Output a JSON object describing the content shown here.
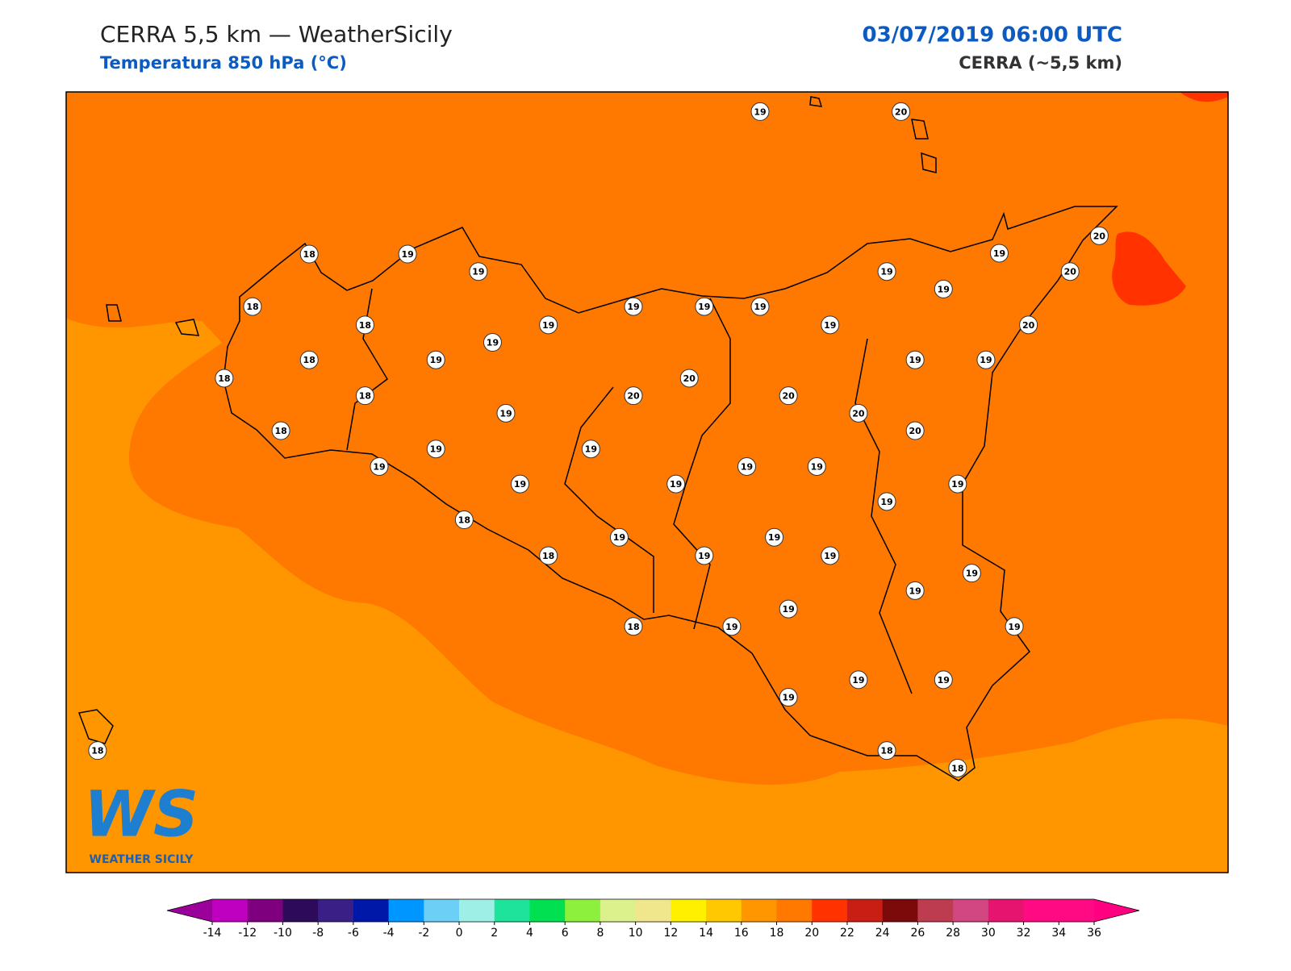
{
  "header": {
    "title": "CERRA 5,5 km — WeatherSicily",
    "subtitle": "Temperatura 850 hPa (°C)",
    "datetime": "03/07/2019 06:00 UTC",
    "model": "CERRA (~5,5 km)"
  },
  "logo": {
    "mark": "WS",
    "caption": "WEATHER SICILY"
  },
  "map": {
    "station_values": [
      19,
      20,
      18,
      19,
      19,
      20,
      19,
      19,
      20,
      19,
      18,
      18,
      19,
      19,
      19,
      19,
      19,
      20,
      19,
      18,
      19,
      19,
      19,
      18,
      20,
      18,
      20,
      20,
      19,
      20,
      18,
      20,
      19,
      19,
      19,
      19,
      19,
      19,
      19,
      19,
      19,
      18,
      19,
      19,
      18,
      19,
      19,
      19,
      19,
      19,
      18,
      19,
      19,
      19,
      19,
      19,
      18,
      18,
      18
    ]
  },
  "colorbar": {
    "ticks": [
      -14,
      -12,
      -10,
      -8,
      -6,
      -4,
      -2,
      0,
      2,
      4,
      6,
      8,
      10,
      12,
      14,
      16,
      18,
      20,
      22,
      24,
      26,
      28,
      30,
      32,
      34,
      36
    ],
    "colors": [
      "#c000c0",
      "#7f007f",
      "#2e0a5a",
      "#3a1f86",
      "#0018a8",
      "#0096ff",
      "#6ccff6",
      "#9ef0e6",
      "#1ee39a",
      "#00e050",
      "#8cf03c",
      "#dcf08c",
      "#f0e68c",
      "#fff000",
      "#ffc800",
      "#ff9600",
      "#ff7800",
      "#ff3200",
      "#c81e14",
      "#7d0a0a",
      "#be3c50",
      "#d24682",
      "#e6146e",
      "#ff0a82",
      "#ff0a82"
    ],
    "under_color": "#9b009b",
    "over_color": "#ff0080"
  }
}
